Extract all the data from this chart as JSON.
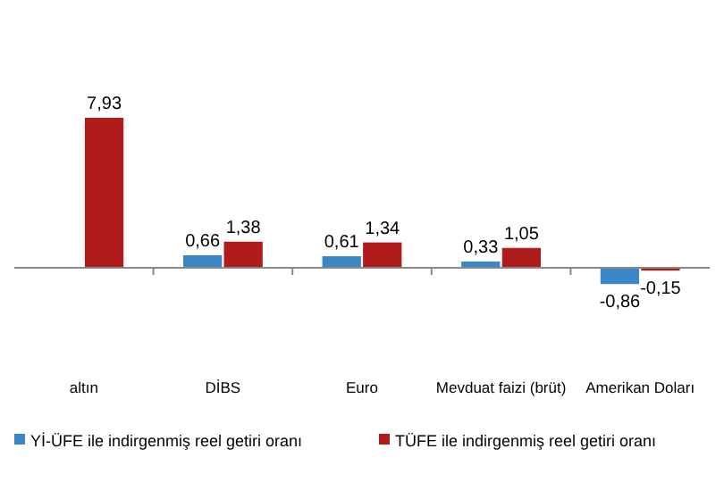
{
  "chart_data": {
    "type": "bar",
    "categories": [
      "altın",
      "DİBS",
      "Euro",
      "Mevduat faizi (brüt)",
      "Amerikan Doları"
    ],
    "series": [
      {
        "name": "Yİ-ÜFE ile indirgenmiş reel getiri oranı",
        "color": "#3a87c8",
        "values": [
          null,
          0.66,
          0.61,
          0.33,
          -0.86
        ],
        "value_labels": [
          null,
          "0,66",
          "0,61",
          "0,33",
          "-0,86"
        ]
      },
      {
        "name": "TÜFE ile indirgenmiş reel getiri oranı",
        "color": "#b01c1c",
        "values": [
          7.93,
          1.38,
          1.34,
          1.05,
          -0.15
        ],
        "value_labels": [
          "7,93",
          "1,38",
          "1,34",
          "1,05",
          "-0,15"
        ]
      }
    ],
    "legend": "bottom"
  }
}
